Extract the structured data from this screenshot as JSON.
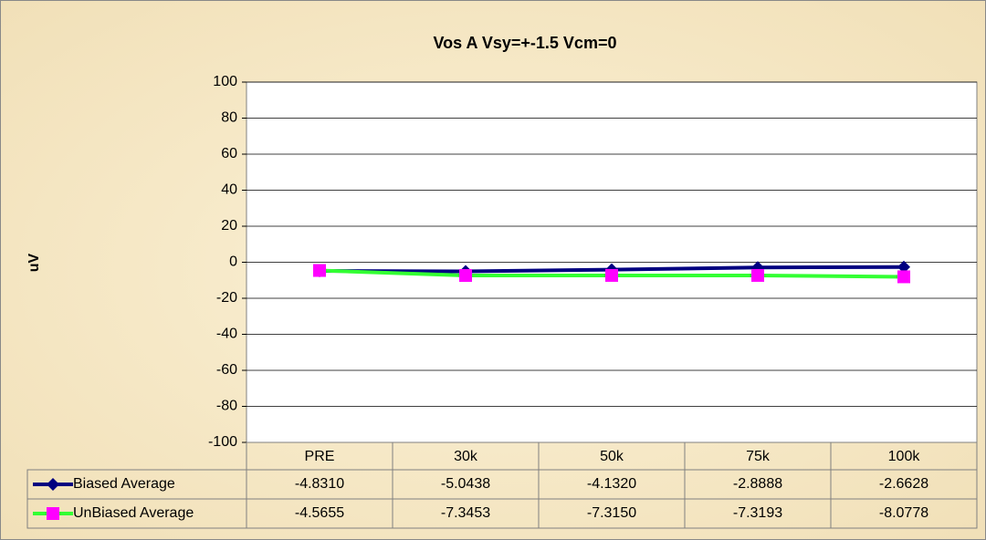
{
  "chart_data": {
    "type": "line",
    "title": "Vos A Vsy=+-1.5 Vcm=0",
    "y_label": "uV",
    "categories": [
      "PRE",
      "30k",
      "50k",
      "75k",
      "100k"
    ],
    "series": [
      {
        "name": "Biased Average",
        "color": "#000080",
        "marker_color": "#000080",
        "marker": "diamond",
        "values": [
          -4.831,
          -5.0438,
          -4.132,
          -2.8888,
          -2.6628
        ],
        "value_labels": [
          "-4.8310",
          "-5.0438",
          "-4.1320",
          "-2.8888",
          "-2.6628"
        ]
      },
      {
        "name": "UnBiased Average",
        "color": "#33ff33",
        "marker_color": "#ff00ff",
        "marker": "square",
        "values": [
          -4.5655,
          -7.3453,
          -7.315,
          -7.3193,
          -8.0778
        ],
        "value_labels": [
          "-4.5655",
          "-7.3453",
          "-7.3150",
          "-7.3193",
          "-8.0778"
        ]
      }
    ],
    "ylim": [
      -100,
      100
    ],
    "yticks": [
      -100,
      -80,
      -60,
      -40,
      -20,
      0,
      20,
      40,
      60,
      80,
      100
    ],
    "grid": true,
    "data_table": true
  }
}
